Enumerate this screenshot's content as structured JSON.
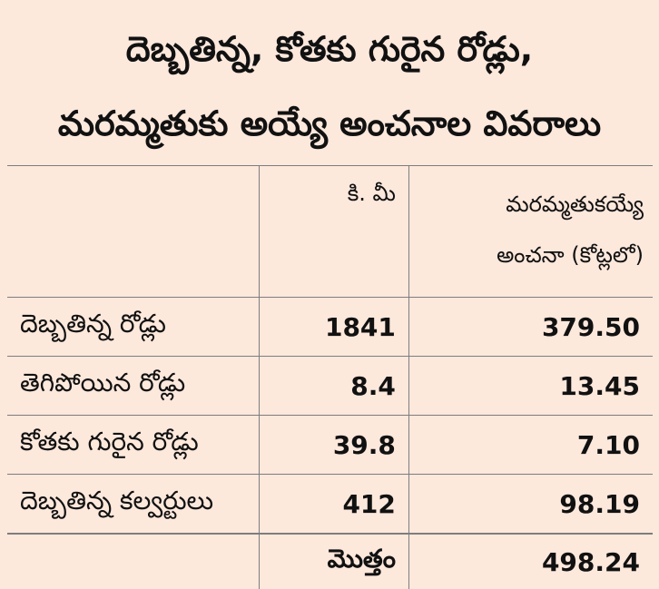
{
  "title": {
    "line1": "దెబ్బతిన్న, కోతకు గురైన రోడ్లు,",
    "line2": "మరమ్మతుకు అయ్యే అంచనాల వివరాలు"
  },
  "table": {
    "header": {
      "km": "కి. మీ",
      "estimate_line1": "మరమ్మతుకయ్యే",
      "estimate_line2": "అంచనా (కోట్లలో)"
    },
    "rows": [
      {
        "name": "దెబ్బతిన్న రోడ్లు",
        "km": "1841",
        "cost": "379.50"
      },
      {
        "name": "తెగిపోయిన రోడ్లు",
        "km": "8.4",
        "cost": "13.45"
      },
      {
        "name": "కోతకు గురైన రోడ్లు",
        "km": "39.8",
        "cost": "7.10"
      },
      {
        "name": "దెబ్బతిన్న కల్వర్టులు",
        "km": "412",
        "cost": "98.19"
      }
    ],
    "total": {
      "label": "మొత్తం",
      "cost": "498.24"
    }
  },
  "colors": {
    "background": "#fde8dc",
    "rule": "#7d7d7d",
    "text": "#111111"
  }
}
